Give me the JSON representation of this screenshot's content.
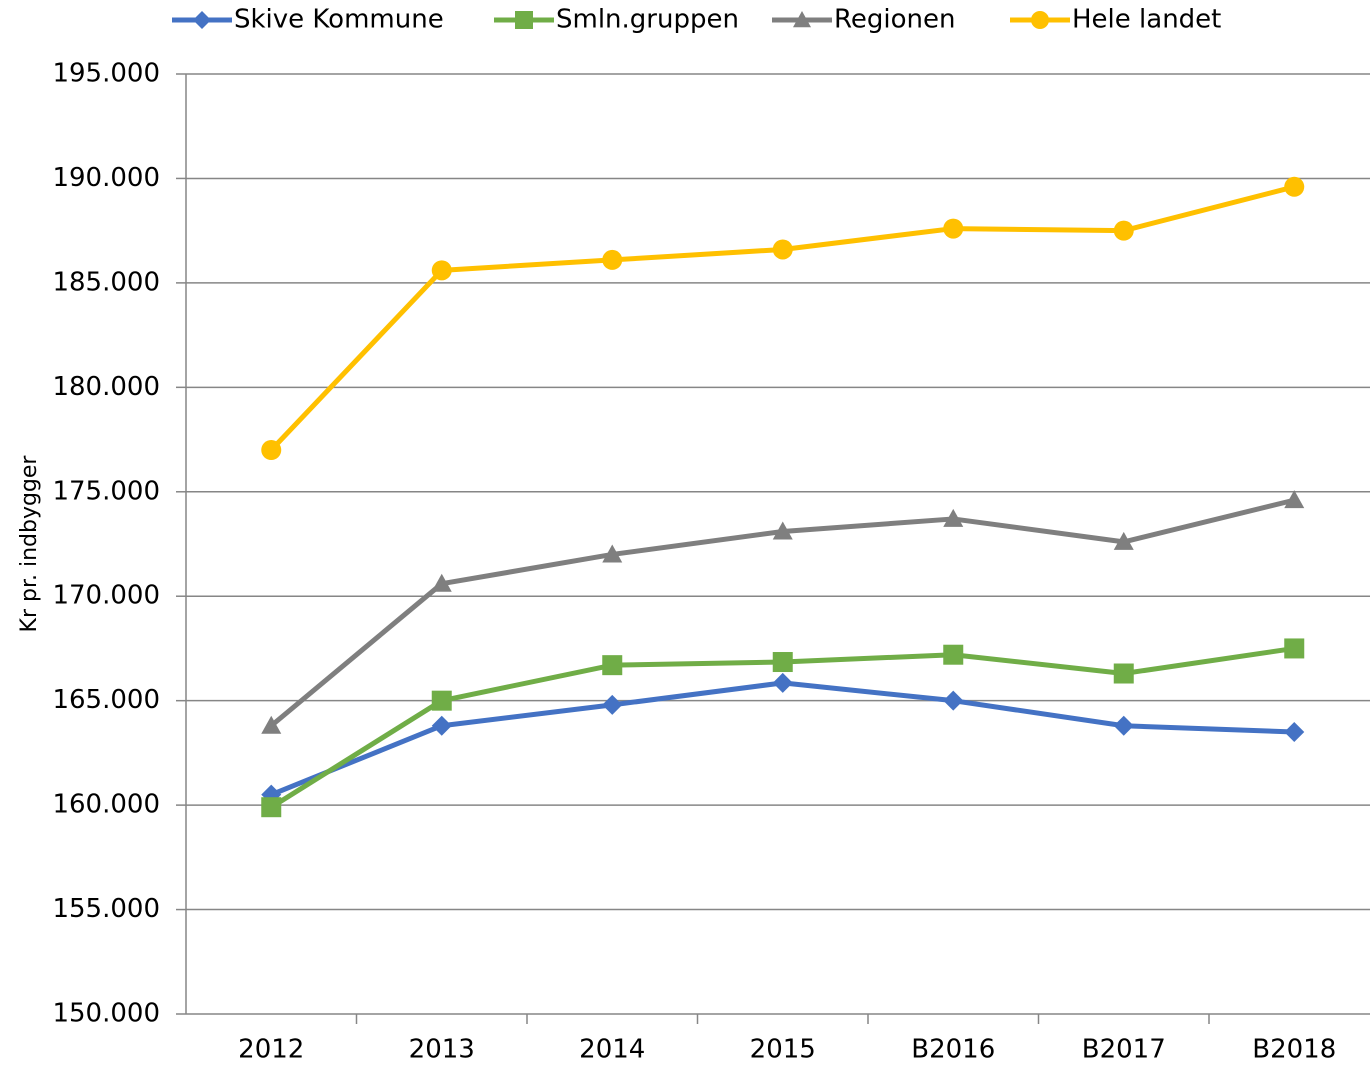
{
  "chart_data": {
    "type": "line",
    "ylabel": "Kr pr. indbygger",
    "categories": [
      "2012",
      "2013",
      "2014",
      "2015",
      "B2016",
      "B2017",
      "B2018"
    ],
    "series": [
      {
        "name": "Skive Kommune",
        "color": "#4472c4",
        "marker": "diamond",
        "values": [
          160500,
          163800,
          164800,
          165850,
          165000,
          163800,
          163500
        ]
      },
      {
        "name": "Smln.gruppen",
        "color": "#70ad47",
        "marker": "square",
        "values": [
          159900,
          165000,
          166700,
          166850,
          167200,
          166300,
          167500
        ]
      },
      {
        "name": "Regionen",
        "color": "#7f7f7f",
        "marker": "triangle",
        "values": [
          163800,
          170600,
          172000,
          173100,
          173700,
          172600,
          174600
        ]
      },
      {
        "name": "Hele landet",
        "color": "#ffc000",
        "marker": "circle",
        "values": [
          177000,
          185600,
          186100,
          186600,
          187600,
          187500,
          189600
        ]
      }
    ],
    "ylim": [
      150000,
      195000
    ],
    "yticks": [
      {
        "value": 150000,
        "label": "150.000"
      },
      {
        "value": 155000,
        "label": "155.000"
      },
      {
        "value": 160000,
        "label": "160.000"
      },
      {
        "value": 165000,
        "label": "165.000"
      },
      {
        "value": 170000,
        "label": "170.000"
      },
      {
        "value": 175000,
        "label": "175.000"
      },
      {
        "value": 180000,
        "label": "180.000"
      },
      {
        "value": 185000,
        "label": "185.000"
      },
      {
        "value": 190000,
        "label": "190.000"
      },
      {
        "value": 195000,
        "label": "195.000"
      }
    ],
    "grid": true,
    "legend": "top"
  }
}
